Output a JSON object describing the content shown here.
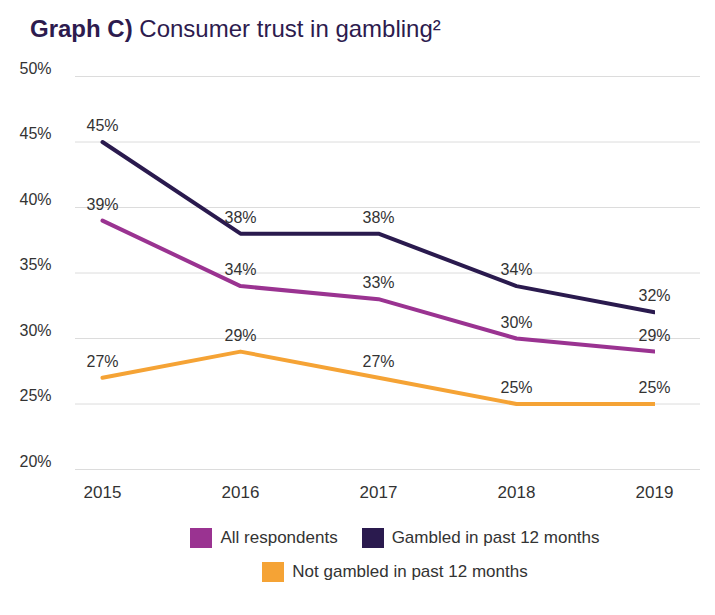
{
  "chart_data": {
    "type": "line",
    "title": "Graph C) Consumer trust in gambling²",
    "categories": [
      "2015",
      "2016",
      "2017",
      "2018",
      "2019"
    ],
    "series": [
      {
        "name": "All respondents",
        "color": "#9a3391",
        "values": [
          39,
          34,
          33,
          30,
          29
        ],
        "value_labels": [
          "39%",
          "34%",
          "33%",
          "30%",
          "29%"
        ]
      },
      {
        "name": "Gambled in past 12 months",
        "color": "#2a1a4e",
        "values": [
          45,
          38,
          38,
          34,
          32
        ],
        "value_labels": [
          "45%",
          "38%",
          "38%",
          "34%",
          "32%"
        ]
      },
      {
        "name": "Not gambled in past 12 months",
        "color": "#f5a335",
        "values": [
          27,
          29,
          27,
          25,
          25
        ],
        "value_labels": [
          "27%",
          "29%",
          "27%",
          "25%",
          "25%"
        ]
      }
    ],
    "ylim": [
      20,
      50
    ],
    "yticks": [
      {
        "value": 20,
        "label": "20%"
      },
      {
        "value": 25,
        "label": "25%"
      },
      {
        "value": 30,
        "label": "30%"
      },
      {
        "value": 35,
        "label": "35%"
      },
      {
        "value": 40,
        "label": "40%"
      },
      {
        "value": 45,
        "label": "45%"
      },
      {
        "value": 50,
        "label": "50%"
      }
    ],
    "grid": true,
    "data_labels": true,
    "legend": "bottom"
  }
}
